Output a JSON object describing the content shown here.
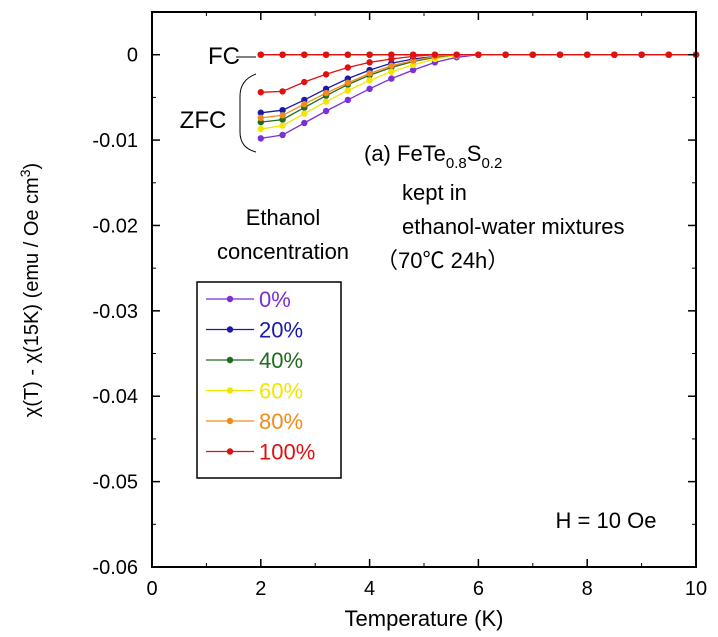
{
  "chart_data": {
    "type": "line",
    "title": "",
    "xlabel": "Temperature (K)",
    "ylabel": "χ(T) - χ(15K) (emu / Oe cm³)",
    "ylabel_parts": {
      "pre": "χ(T) - χ(15K) (emu / Oe cm",
      "sup": "3",
      "post": ")"
    },
    "xlim": [
      0,
      10
    ],
    "ylim": [
      -0.06,
      0.005
    ],
    "xticks": [
      0,
      2,
      4,
      6,
      8,
      10
    ],
    "xtick_labels": [
      "0",
      "2",
      "4",
      "6",
      "8",
      "10"
    ],
    "yticks": [
      0,
      -0.01,
      -0.02,
      -0.03,
      -0.04,
      -0.05,
      -0.06
    ],
    "ytick_labels": [
      "0",
      "-0.01",
      "-0.02",
      "-0.03",
      "-0.04",
      "-0.05",
      "-0.06"
    ],
    "grid": false,
    "legend_position": "left",
    "legend_title_line1": "Ethanol",
    "legend_title_line2": "concentration",
    "annotations": {
      "fc": "FC",
      "zfc": "ZFC",
      "sample": {
        "prefix": "(a) FeTe",
        "sub1": "0.8",
        "mid": "S",
        "sub2": "0.2"
      },
      "kept_line1": "kept in",
      "kept_line2": "ethanol-water mixtures",
      "condition": "（70℃ 24h）",
      "field": "H = 10 Oe"
    },
    "x": [
      2.0,
      2.4,
      2.8,
      3.2,
      3.6,
      4.0,
      4.4,
      4.8,
      5.2,
      5.6,
      6.0,
      6.5,
      7.0,
      7.5,
      8.0,
      8.5,
      9.0,
      9.5,
      10.0
    ],
    "series": [
      {
        "name": "0%",
        "color": "#7b2fd6",
        "zfc": [
          -0.0098,
          -0.0094,
          -0.008,
          -0.0066,
          -0.0053,
          -0.004,
          -0.0028,
          -0.0018,
          -0.0009,
          -0.0003,
          0,
          0,
          0,
          0,
          0,
          0,
          0,
          0,
          0
        ],
        "fc": [
          0,
          0,
          0,
          0,
          0,
          0,
          0,
          0,
          0,
          0,
          0,
          0,
          0,
          0,
          0,
          0,
          0,
          0,
          0
        ]
      },
      {
        "name": "20%",
        "color": "#1a1aa8",
        "zfc": [
          -0.0068,
          -0.0065,
          -0.0053,
          -0.004,
          -0.0028,
          -0.0018,
          -0.001,
          -0.0005,
          -0.0002,
          0,
          0,
          0,
          0,
          0,
          0,
          0,
          0,
          0,
          0
        ],
        "fc": [
          0,
          0,
          0,
          0,
          0,
          0,
          0,
          0,
          0,
          0,
          0,
          0,
          0,
          0,
          0,
          0,
          0,
          0,
          0
        ]
      },
      {
        "name": "40%",
        "color": "#1f6b1f",
        "zfc": [
          -0.0079,
          -0.0076,
          -0.0062,
          -0.0048,
          -0.0035,
          -0.0024,
          -0.0015,
          -0.0008,
          -0.0003,
          0,
          0,
          0,
          0,
          0,
          0,
          0,
          0,
          0,
          0
        ],
        "fc": [
          0,
          0,
          0,
          0,
          0,
          0,
          0,
          0,
          0,
          0,
          0,
          0,
          0,
          0,
          0,
          0,
          0,
          0,
          0
        ]
      },
      {
        "name": "60%",
        "color": "#f2e600",
        "zfc": [
          -0.0087,
          -0.0083,
          -0.0069,
          -0.0055,
          -0.0042,
          -0.003,
          -0.002,
          -0.0012,
          -0.0005,
          -0.0001,
          0,
          0,
          0,
          0,
          0,
          0,
          0,
          0,
          0
        ],
        "fc": [
          0,
          0,
          0,
          0,
          0,
          0,
          0,
          0,
          0,
          0,
          0,
          0,
          0,
          0,
          0,
          0,
          0,
          0,
          0
        ]
      },
      {
        "name": "80%",
        "color": "#f08c1a",
        "zfc": [
          -0.0074,
          -0.0071,
          -0.0058,
          -0.0045,
          -0.0033,
          -0.0022,
          -0.0013,
          -0.0007,
          -0.0002,
          0,
          0,
          0,
          0,
          0,
          0,
          0,
          0,
          0,
          0
        ],
        "fc": [
          0,
          0,
          0,
          0,
          0,
          0,
          0,
          0,
          0,
          0,
          0,
          0,
          0,
          0,
          0,
          0,
          0,
          0,
          0
        ]
      },
      {
        "name": "100%",
        "color": "#e01010",
        "zfc": [
          -0.0044,
          -0.0043,
          -0.0032,
          -0.0023,
          -0.0015,
          -0.0009,
          -0.0005,
          -0.0002,
          0,
          0,
          0,
          0,
          0,
          0,
          0,
          0,
          0,
          0,
          0
        ],
        "fc": [
          0,
          0,
          0,
          0,
          0,
          0,
          0,
          0,
          0,
          0,
          0,
          0,
          0,
          0,
          0,
          0,
          0,
          0,
          0
        ]
      }
    ]
  }
}
